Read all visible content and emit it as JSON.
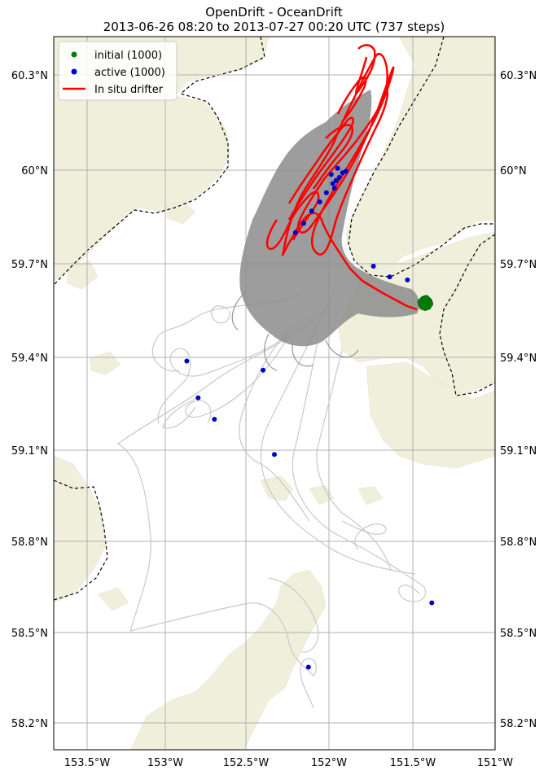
{
  "title": {
    "line1": "OpenDrift - OceanDrift",
    "line2": "2013-06-26 08:20 to 2013-07-27 00:20 UTC (737 steps)"
  },
  "legend": {
    "items": [
      {
        "label": "initial (1000)",
        "color": "#007f00",
        "marker": "dot"
      },
      {
        "label": "active (1000)",
        "color": "#0000cc",
        "marker": "dot"
      },
      {
        "label": "In situ drifter",
        "color": "#ff0000",
        "marker": "line"
      }
    ]
  },
  "colors": {
    "land": "#efefdb",
    "land_edge": "#dcdcc8",
    "sea": "#ffffff",
    "grid": "#b0b0b0",
    "trajectory": "#808080",
    "trajectory_light": "#c8c8c8",
    "drifter": "#ff0000",
    "initial": "#007f00",
    "active": "#0000cc",
    "border": "#000000"
  },
  "axes": {
    "lat_ticks": [
      "60.3°N",
      "60°N",
      "59.7°N",
      "59.4°N",
      "59.1°N",
      "58.8°N",
      "58.5°N",
      "58.2°N"
    ],
    "lon_ticks": [
      "153.5°W",
      "153°W",
      "152.5°W",
      "152°W",
      "151.5°W",
      "151°W"
    ],
    "lat_values": [
      60.3,
      60.0,
      59.7,
      59.4,
      59.1,
      58.8,
      58.5,
      58.2
    ],
    "lon_values": [
      -153.5,
      -153.0,
      -152.5,
      -152.0,
      -151.5,
      -151.0
    ],
    "lat_range": [
      58.1,
      60.43
    ],
    "lon_range": [
      -153.71,
      -150.99
    ],
    "grid": true
  },
  "active_points": [
    [
      -152.89,
      59.37
    ],
    [
      -152.82,
      59.25
    ],
    [
      -152.72,
      59.18
    ],
    [
      -152.42,
      59.34
    ],
    [
      -152.35,
      59.065
    ],
    [
      -152.14,
      58.37
    ],
    [
      -151.38,
      58.58
    ],
    [
      -151.74,
      59.68
    ],
    [
      -151.64,
      59.645
    ],
    [
      -151.53,
      59.635
    ],
    [
      -152.22,
      59.79
    ],
    [
      -152.17,
      59.82
    ],
    [
      -152.12,
      59.86
    ],
    [
      -152.07,
      59.89
    ],
    [
      -152.03,
      59.92
    ],
    [
      -151.99,
      59.95
    ],
    [
      -151.97,
      59.96
    ],
    [
      -151.95,
      59.97
    ],
    [
      -152.0,
      59.98
    ],
    [
      -151.93,
      59.985
    ],
    [
      -151.96,
      60.0
    ],
    [
      -151.91,
      59.99
    ],
    [
      -151.98,
      59.935
    ]
  ],
  "initial_point": [
    -151.42,
    59.56
  ]
}
